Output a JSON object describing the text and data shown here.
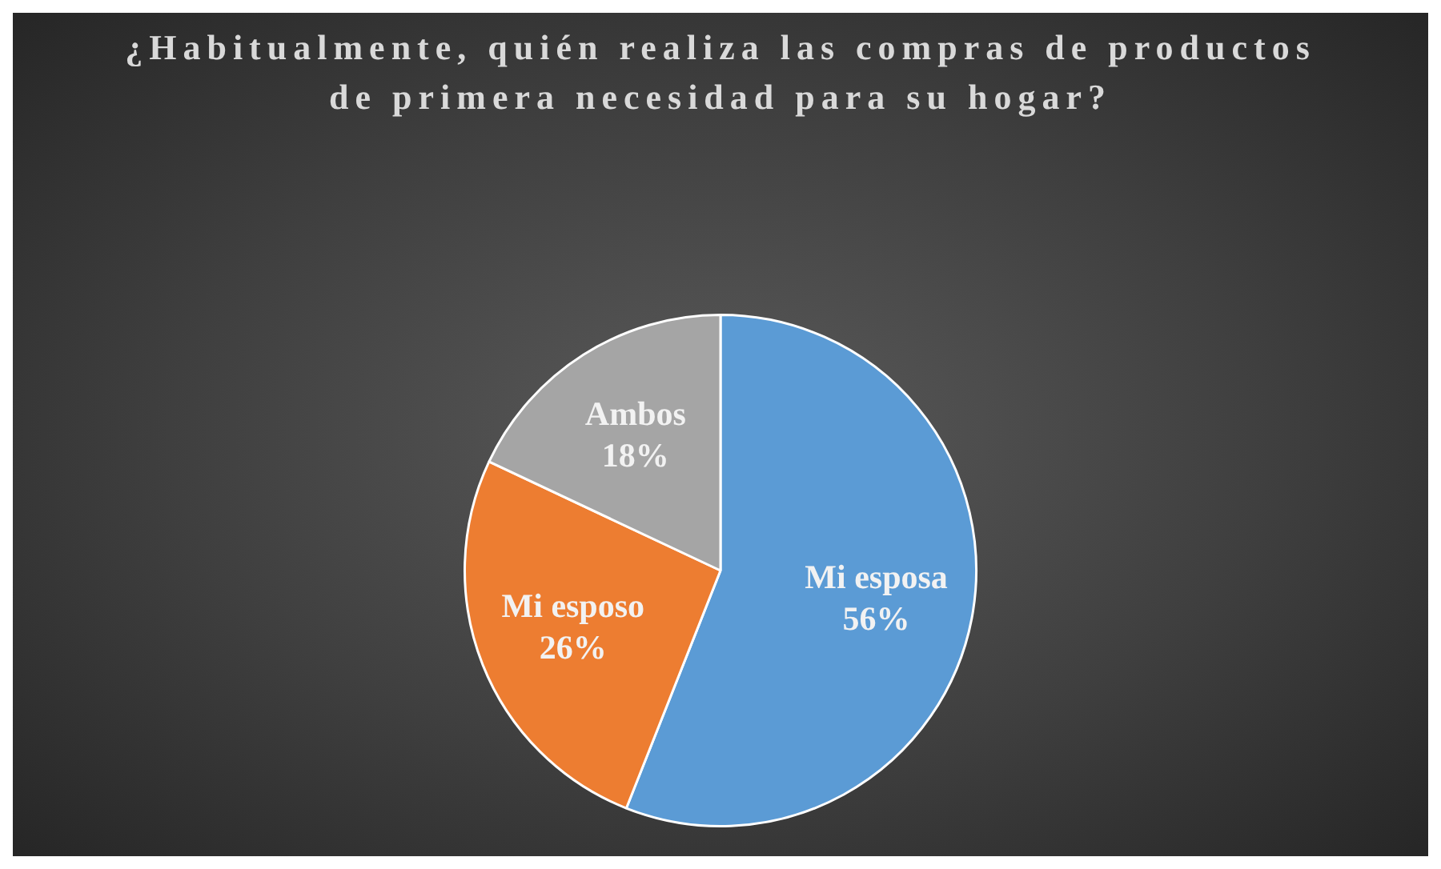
{
  "chart_data": {
    "type": "pie",
    "title": "¿Habitualmente, quién realiza las compras de productos de primera necesidad para su hogar?",
    "categories": [
      "Mi esposa",
      "Mi esposo",
      "Ambos"
    ],
    "values": [
      56,
      26,
      18
    ],
    "value_labels": [
      "56%",
      "26%",
      "18%"
    ],
    "colors": [
      "#5b9bd5",
      "#ed7d31",
      "#a5a5a5"
    ],
    "legend": false
  }
}
